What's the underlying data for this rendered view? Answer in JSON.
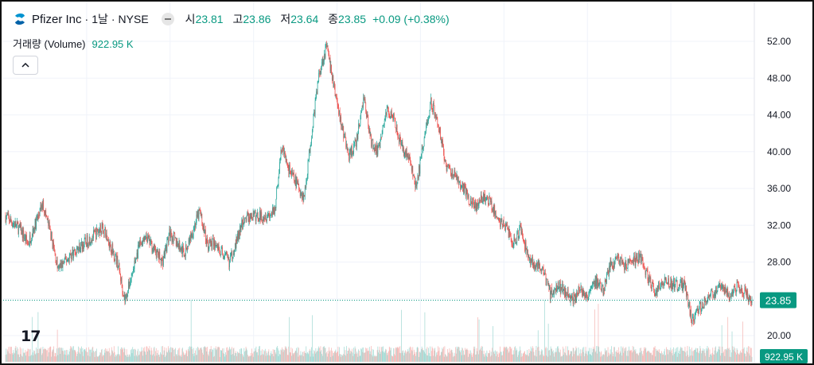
{
  "header": {
    "symbol_title": "Pfizer Inc",
    "interval": "1날",
    "exchange": "NYSE",
    "ohlc": [
      {
        "key": "시",
        "value": "23.81"
      },
      {
        "key": "고",
        "value": "23.86"
      },
      {
        "key": "저",
        "value": "23.64"
      },
      {
        "key": "종",
        "value": "23.85"
      }
    ],
    "change": "+0.09 (+0.38%)"
  },
  "volume_legend": {
    "label": "거래량 (Volume)",
    "value": "922.95 K"
  },
  "price_tag": "23.85",
  "volume_tag": "922.95 K",
  "colors": {
    "up": "#26a69a",
    "down": "#ef5350",
    "accent": "#089981",
    "grid": "#f0f3fa"
  },
  "icons": {
    "logo": "pfizer-logo-icon",
    "collapse": "chevron-up-icon",
    "brand": "tradingview-logo-icon"
  },
  "brand_text": "17",
  "chart_data": {
    "type": "candlestick",
    "interval": "1 day",
    "y_ticks": [
      "52.00",
      "48.00",
      "44.00",
      "40.00",
      "36.00",
      "32.00",
      "28.00",
      "24.00",
      "20.00"
    ],
    "ylim": [
      18.4,
      52.5
    ],
    "last_price": 23.85,
    "last_volume": "922.95 K",
    "grid": true,
    "series_path": [
      [
        0,
        33.0
      ],
      [
        0.02,
        31.5
      ],
      [
        0.03,
        30.0
      ],
      [
        0.05,
        34.3
      ],
      [
        0.06,
        31.2
      ],
      [
        0.07,
        27.2
      ],
      [
        0.09,
        29.0
      ],
      [
        0.12,
        31.0
      ],
      [
        0.13,
        31.8
      ],
      [
        0.15,
        28.0
      ],
      [
        0.16,
        23.8
      ],
      [
        0.18,
        30.0
      ],
      [
        0.19,
        30.5
      ],
      [
        0.21,
        28.0
      ],
      [
        0.22,
        31.2
      ],
      [
        0.23,
        30.0
      ],
      [
        0.24,
        29.0
      ],
      [
        0.26,
        33.5
      ],
      [
        0.27,
        30.0
      ],
      [
        0.28,
        30.0
      ],
      [
        0.3,
        28.0
      ],
      [
        0.32,
        32.8
      ],
      [
        0.34,
        33.0
      ],
      [
        0.36,
        33.3
      ],
      [
        0.37,
        40.5
      ],
      [
        0.38,
        38.0
      ],
      [
        0.39,
        36.5
      ],
      [
        0.4,
        35.0
      ],
      [
        0.41,
        42.0
      ],
      [
        0.42,
        48.5
      ],
      [
        0.43,
        51.5
      ],
      [
        0.44,
        47.0
      ],
      [
        0.45,
        43.0
      ],
      [
        0.46,
        39.5
      ],
      [
        0.47,
        41.0
      ],
      [
        0.48,
        46.0
      ],
      [
        0.49,
        41.0
      ],
      [
        0.5,
        40.0
      ],
      [
        0.51,
        44.5
      ],
      [
        0.52,
        44.0
      ],
      [
        0.53,
        40.5
      ],
      [
        0.54,
        39.5
      ],
      [
        0.55,
        36.0
      ],
      [
        0.56,
        41.0
      ],
      [
        0.57,
        45.5
      ],
      [
        0.58,
        43.0
      ],
      [
        0.59,
        38.5
      ],
      [
        0.6,
        37.5
      ],
      [
        0.61,
        36.5
      ],
      [
        0.62,
        35.0
      ],
      [
        0.63,
        34.0
      ],
      [
        0.64,
        35.0
      ],
      [
        0.65,
        34.5
      ],
      [
        0.66,
        32.5
      ],
      [
        0.67,
        32.0
      ],
      [
        0.68,
        30.0
      ],
      [
        0.69,
        31.5
      ],
      [
        0.7,
        28.5
      ],
      [
        0.72,
        27.0
      ],
      [
        0.73,
        24.5
      ],
      [
        0.74,
        25.5
      ],
      [
        0.76,
        24.0
      ],
      [
        0.77,
        25.0
      ],
      [
        0.78,
        24.5
      ],
      [
        0.79,
        26.0
      ],
      [
        0.8,
        24.8
      ],
      [
        0.81,
        27.5
      ],
      [
        0.82,
        28.5
      ],
      [
        0.83,
        27.5
      ],
      [
        0.84,
        28.0
      ],
      [
        0.85,
        28.5
      ],
      [
        0.86,
        26.5
      ],
      [
        0.87,
        24.5
      ],
      [
        0.88,
        26.0
      ],
      [
        0.9,
        25.5
      ],
      [
        0.91,
        25.5
      ],
      [
        0.92,
        21.5
      ],
      [
        0.93,
        23.0
      ],
      [
        0.94,
        24.0
      ],
      [
        0.96,
        25.5
      ],
      [
        0.97,
        24.5
      ],
      [
        0.98,
        25.5
      ],
      [
        1.0,
        23.85
      ]
    ]
  }
}
